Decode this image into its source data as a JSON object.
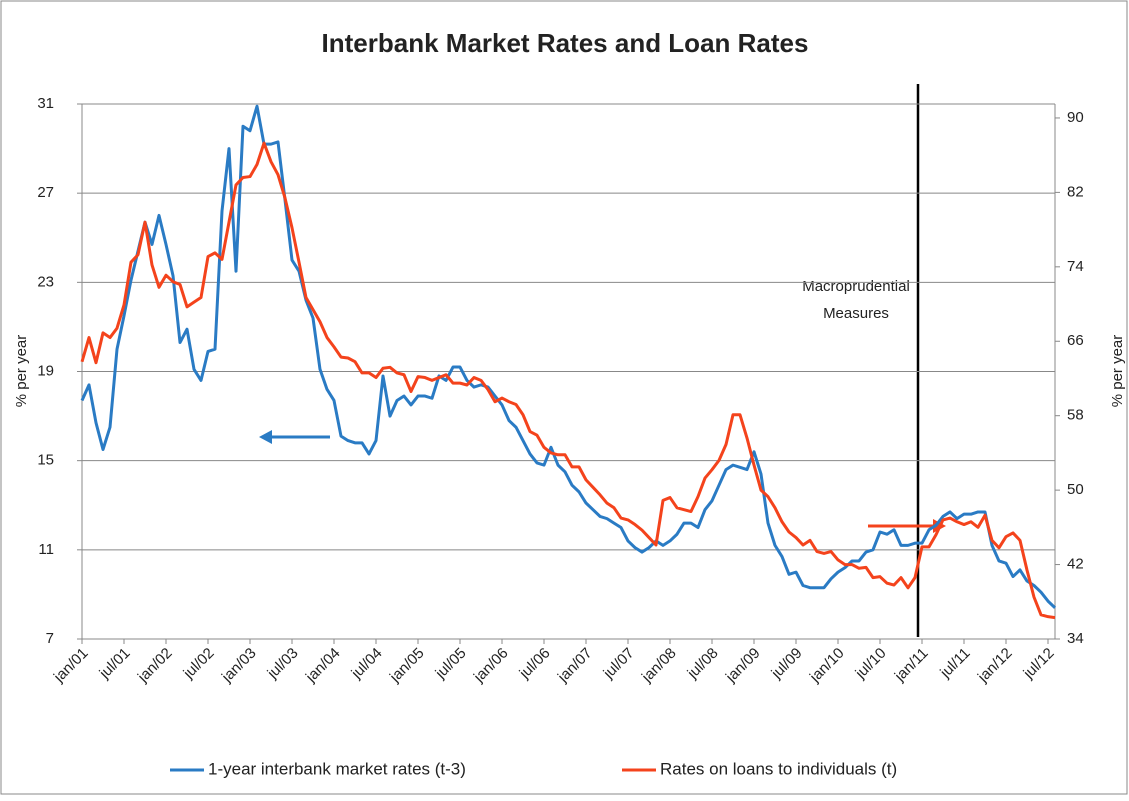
{
  "chart_data": {
    "type": "line",
    "title": "Interbank Market Rates and Loan Rates",
    "ylabel": "% per year",
    "y2label": "% per year",
    "annotation": [
      "Macroprudential",
      "Measures"
    ],
    "categories": [
      "jan/01",
      null,
      null,
      null,
      null,
      null,
      "jul/01",
      null,
      null,
      null,
      null,
      null,
      "jan/02",
      null,
      null,
      null,
      null,
      null,
      "jul/02",
      null,
      null,
      null,
      null,
      null,
      "jan/03",
      null,
      null,
      null,
      null,
      null,
      "jul/03",
      null,
      null,
      null,
      null,
      null,
      "jan/04",
      null,
      null,
      null,
      null,
      null,
      "jul/04",
      null,
      null,
      null,
      null,
      null,
      "jan/05",
      null,
      null,
      null,
      null,
      null,
      "jul/05",
      null,
      null,
      null,
      null,
      null,
      "jan/06",
      null,
      null,
      null,
      null,
      null,
      "jul/06",
      null,
      null,
      null,
      null,
      null,
      "jan/07",
      null,
      null,
      null,
      null,
      null,
      "jul/07",
      null,
      null,
      null,
      null,
      null,
      "jan/08",
      null,
      null,
      null,
      null,
      null,
      "jul/08",
      null,
      null,
      null,
      null,
      null,
      "jan/09",
      null,
      null,
      null,
      null,
      null,
      "jul/09",
      null,
      null,
      null,
      null,
      null,
      "jan/10",
      null,
      null,
      null,
      null,
      null,
      "jul/10",
      null,
      null,
      null,
      null,
      null,
      "jan/11",
      null,
      null,
      null,
      null,
      null,
      "jul/11",
      null,
      null,
      null,
      null,
      null,
      "jan/12",
      null,
      null,
      null,
      null,
      null,
      "jul/12",
      null
    ],
    "series": [
      {
        "name": "1-year interbank market rates (t-3)",
        "color": "#2a7bc4",
        "axis": "y",
        "values": [
          17.7,
          18.4,
          16.7,
          15.5,
          16.5,
          20.0,
          21.5,
          23.1,
          24.4,
          25.7,
          24.7,
          26.0,
          24.7,
          23.3,
          20.3,
          20.9,
          19.1,
          18.6,
          19.9,
          20.0,
          26.2,
          29.0,
          23.5,
          30.0,
          29.8,
          30.9,
          29.2,
          29.2,
          29.3,
          26.7,
          24.0,
          23.5,
          22.2,
          21.4,
          19.1,
          18.2,
          17.7,
          16.1,
          15.9,
          15.8,
          15.8,
          15.3,
          15.9,
          18.8,
          17.0,
          17.7,
          17.9,
          17.5,
          17.9,
          17.9,
          17.8,
          18.8,
          18.6,
          19.2,
          19.2,
          18.6,
          18.3,
          18.4,
          18.3,
          17.9,
          17.5,
          16.8,
          16.5,
          15.9,
          15.3,
          14.9,
          14.8,
          15.6,
          14.8,
          14.5,
          13.9,
          13.6,
          13.1,
          12.8,
          12.5,
          12.4,
          12.2,
          12.0,
          11.4,
          11.1,
          10.9,
          11.1,
          11.4,
          11.2,
          11.4,
          11.7,
          12.2,
          12.2,
          12.0,
          12.8,
          13.2,
          13.9,
          14.6,
          14.8,
          14.7,
          14.6,
          15.4,
          14.4,
          12.2,
          11.2,
          10.7,
          9.9,
          10.0,
          9.4,
          9.3,
          9.3,
          9.3,
          9.7,
          10.0,
          10.2,
          10.5,
          10.5,
          10.9,
          11.0,
          11.8,
          11.7,
          11.9,
          11.2,
          11.2,
          11.3,
          11.3,
          11.9,
          12.1,
          12.5,
          12.7,
          12.4,
          12.6,
          12.6,
          12.7,
          12.7,
          11.2,
          10.5,
          10.4,
          9.8,
          10.1,
          9.6,
          9.4,
          9.1,
          8.7,
          8.4
        ]
      },
      {
        "name": "Rates on loans to individuals (t)",
        "color": "#f4431c",
        "axis": "y2",
        "values": [
          63.8,
          66.4,
          63.7,
          66.9,
          66.4,
          67.4,
          69.9,
          74.5,
          75.3,
          78.8,
          74.2,
          71.8,
          73.1,
          72.4,
          72.1,
          69.7,
          70.2,
          70.7,
          75.1,
          75.5,
          74.8,
          78.8,
          82.8,
          83.6,
          83.7,
          85.0,
          87.3,
          85.3,
          83.9,
          81.4,
          78.2,
          74.5,
          70.7,
          69.4,
          68.1,
          66.4,
          65.4,
          64.3,
          64.2,
          63.8,
          62.6,
          62.6,
          62.1,
          63.1,
          63.2,
          62.6,
          62.4,
          60.6,
          62.2,
          62.1,
          61.8,
          62.1,
          62.4,
          61.5,
          61.5,
          61.3,
          62.1,
          61.8,
          60.8,
          59.5,
          59.9,
          59.5,
          59.2,
          58.1,
          56.3,
          55.9,
          54.6,
          54.0,
          53.8,
          53.8,
          52.5,
          52.5,
          51.1,
          50.3,
          49.5,
          48.6,
          48.1,
          47.0,
          46.8,
          46.3,
          45.7,
          44.9,
          44.1,
          48.9,
          49.2,
          48.1,
          47.9,
          47.7,
          49.3,
          51.3,
          52.2,
          53.2,
          54.9,
          58.1,
          58.1,
          55.6,
          52.7,
          50.0,
          49.3,
          48.1,
          46.6,
          45.5,
          44.9,
          44.1,
          44.6,
          43.4,
          43.2,
          43.4,
          42.5,
          42.0,
          42.0,
          41.6,
          41.7,
          40.6,
          40.7,
          40.0,
          39.8,
          40.6,
          39.5,
          40.6,
          43.9,
          43.9,
          45.2,
          46.8,
          47.0,
          46.6,
          46.3,
          46.6,
          46.0,
          47.3,
          44.6,
          43.8,
          45.0,
          45.4,
          44.6,
          41.4,
          38.5,
          36.6,
          36.4,
          36.3
        ]
      }
    ],
    "ylim": [
      7,
      31
    ],
    "yticks": [
      7,
      11,
      15,
      19,
      23,
      27,
      31
    ],
    "y2lim": [
      34,
      91.5
    ],
    "y2ticks": [
      34,
      42,
      50,
      58,
      66,
      74,
      82,
      90
    ],
    "grid": true,
    "legend": "bottom"
  }
}
